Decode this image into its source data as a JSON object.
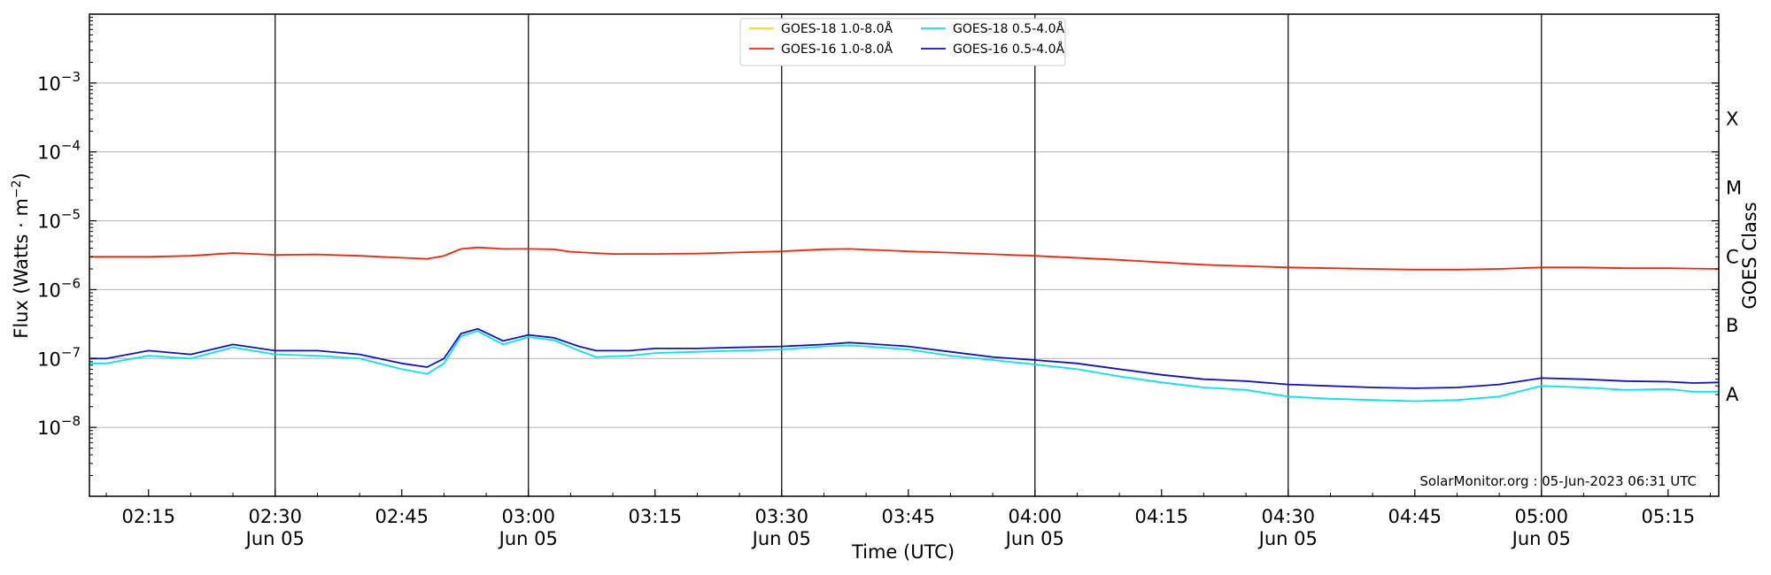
{
  "chart_data": {
    "type": "line",
    "ylabel_main": "Flux (Watts · m",
    "ylabel_sup": "−2",
    "ylabel_close": ")",
    "xlabel": "Time (UTC)",
    "right_axis_label": "GOES Class",
    "y_scale": "log",
    "y_range": [
      1e-09,
      0.01
    ],
    "y_ticks": [
      {
        "value": 1e-08,
        "base": "10",
        "exp": "−8"
      },
      {
        "value": 1e-07,
        "base": "10",
        "exp": "−7"
      },
      {
        "value": 1e-06,
        "base": "10",
        "exp": "−6"
      },
      {
        "value": 1e-05,
        "base": "10",
        "exp": "−5"
      },
      {
        "value": 0.0001,
        "base": "10",
        "exp": "−4"
      },
      {
        "value": 0.001,
        "base": "10",
        "exp": "−3"
      }
    ],
    "goes_classes": [
      {
        "label": "A",
        "value": 3e-08
      },
      {
        "label": "B",
        "value": 3e-07
      },
      {
        "label": "C",
        "value": 3e-06
      },
      {
        "label": "M",
        "value": 3e-05
      },
      {
        "label": "X",
        "value": 0.0003
      }
    ],
    "x_range": [
      "02:08",
      "05:21"
    ],
    "x_ticks": [
      {
        "time": "02:15",
        "date": ""
      },
      {
        "time": "02:30",
        "date": "Jun 05"
      },
      {
        "time": "02:45",
        "date": ""
      },
      {
        "time": "03:00",
        "date": "Jun 05"
      },
      {
        "time": "03:15",
        "date": ""
      },
      {
        "time": "03:30",
        "date": "Jun 05"
      },
      {
        "time": "03:45",
        "date": ""
      },
      {
        "time": "04:00",
        "date": "Jun 05"
      },
      {
        "time": "04:15",
        "date": ""
      },
      {
        "time": "04:30",
        "date": "Jun 05"
      },
      {
        "time": "04:45",
        "date": ""
      },
      {
        "time": "05:00",
        "date": "Jun 05"
      },
      {
        "time": "05:15",
        "date": ""
      }
    ],
    "vertical_lines": [
      "02:30",
      "03:00",
      "03:30",
      "04:00",
      "04:30",
      "05:00"
    ],
    "grid": "horizontal at decades",
    "legend_position": "top-center",
    "legend": [
      {
        "name": "GOES-18 1.0-8.0Å",
        "color": "#ffd700"
      },
      {
        "name": "GOES-16 1.0-8.0Å",
        "color": "#ff2000"
      },
      {
        "name": "GOES-18 0.5-4.0Å",
        "color": "#00e5ee"
      },
      {
        "name": "GOES-16 0.5-4.0Å",
        "color": "#1010d0"
      }
    ],
    "credit": "SolarMonitor.org : 05-Jun-2023 06:31 UTC",
    "series": [
      {
        "name": "GOES-16 1.0-8.0Å",
        "color": "#ff2000",
        "x": [
          "02:08",
          "02:15",
          "02:20",
          "02:25",
          "02:30",
          "02:35",
          "02:40",
          "02:45",
          "02:48",
          "02:50",
          "02:52",
          "02:54",
          "02:57",
          "03:00",
          "03:03",
          "03:05",
          "03:10",
          "03:15",
          "03:20",
          "03:30",
          "03:35",
          "03:38",
          "03:45",
          "03:50",
          "04:00",
          "04:10",
          "04:20",
          "04:30",
          "04:35",
          "04:40",
          "04:45",
          "04:50",
          "04:55",
          "05:00",
          "05:05",
          "05:10",
          "05:15",
          "05:21"
        ],
        "y": [
          3e-06,
          3e-06,
          3.1e-06,
          3.4e-06,
          3.2e-06,
          3.25e-06,
          3.1e-06,
          2.9e-06,
          2.8e-06,
          3.1e-06,
          3.9e-06,
          4.1e-06,
          3.9e-06,
          3.9e-06,
          3.85e-06,
          3.55e-06,
          3.3e-06,
          3.3e-06,
          3.35e-06,
          3.6e-06,
          3.85e-06,
          3.9e-06,
          3.6e-06,
          3.45e-06,
          3.1e-06,
          2.7e-06,
          2.3e-06,
          2.1e-06,
          2.05e-06,
          2e-06,
          1.95e-06,
          1.95e-06,
          2e-06,
          2.1e-06,
          2.1e-06,
          2.05e-06,
          2.05e-06,
          2e-06
        ]
      },
      {
        "name": "GOES-16 0.5-4.0Å",
        "color": "#1010d0",
        "x": [
          "02:08",
          "02:10",
          "02:15",
          "02:20",
          "02:25",
          "02:30",
          "02:35",
          "02:40",
          "02:45",
          "02:48",
          "02:50",
          "02:52",
          "02:54",
          "02:57",
          "03:00",
          "03:03",
          "03:06",
          "03:08",
          "03:12",
          "03:15",
          "03:20",
          "03:25",
          "03:30",
          "03:35",
          "03:38",
          "03:40",
          "03:45",
          "03:50",
          "03:55",
          "04:00",
          "04:05",
          "04:10",
          "04:15",
          "04:20",
          "04:25",
          "04:30",
          "04:35",
          "04:40",
          "04:45",
          "04:50",
          "04:55",
          "05:00",
          "05:05",
          "05:10",
          "05:15",
          "05:18",
          "05:21"
        ],
        "y": [
          1e-07,
          1e-07,
          1.3e-07,
          1.15e-07,
          1.6e-07,
          1.3e-07,
          1.3e-07,
          1.15e-07,
          8.5e-08,
          7.5e-08,
          1e-07,
          2.3e-07,
          2.7e-07,
          1.8e-07,
          2.2e-07,
          2e-07,
          1.5e-07,
          1.3e-07,
          1.3e-07,
          1.4e-07,
          1.4e-07,
          1.45e-07,
          1.5e-07,
          1.6e-07,
          1.7e-07,
          1.65e-07,
          1.5e-07,
          1.25e-07,
          1.05e-07,
          9.5e-08,
          8.5e-08,
          7e-08,
          5.8e-08,
          5e-08,
          4.7e-08,
          4.2e-08,
          4e-08,
          3.8e-08,
          3.7e-08,
          3.8e-08,
          4.2e-08,
          5.2e-08,
          5e-08,
          4.7e-08,
          4.6e-08,
          4.4e-08,
          4.5e-08
        ]
      },
      {
        "name": "GOES-18 0.5-4.0Å",
        "color": "#00e5ee",
        "x": [
          "02:08",
          "02:10",
          "02:15",
          "02:20",
          "02:25",
          "02:30",
          "02:35",
          "02:40",
          "02:45",
          "02:48",
          "02:50",
          "02:52",
          "02:54",
          "02:57",
          "03:00",
          "03:03",
          "03:06",
          "03:08",
          "03:12",
          "03:15",
          "03:20",
          "03:25",
          "03:30",
          "03:35",
          "03:38",
          "03:40",
          "03:45",
          "03:50",
          "03:55",
          "04:00",
          "04:05",
          "04:10",
          "04:15",
          "04:20",
          "04:25",
          "04:30",
          "04:35",
          "04:40",
          "04:45",
          "04:50",
          "04:55",
          "05:00",
          "05:05",
          "05:10",
          "05:15",
          "05:18",
          "05:21"
        ],
        "y": [
          8.5e-08,
          8.5e-08,
          1.1e-07,
          1e-07,
          1.45e-07,
          1.15e-07,
          1.1e-07,
          1e-07,
          7e-08,
          6e-08,
          8.5e-08,
          2.1e-07,
          2.5e-07,
          1.6e-07,
          2.05e-07,
          1.85e-07,
          1.3e-07,
          1.05e-07,
          1.1e-07,
          1.2e-07,
          1.25e-07,
          1.3e-07,
          1.35e-07,
          1.5e-07,
          1.55e-07,
          1.5e-07,
          1.35e-07,
          1.1e-07,
          9.5e-08,
          8.2e-08,
          7e-08,
          5.5e-08,
          4.5e-08,
          3.8e-08,
          3.5e-08,
          2.8e-08,
          2.6e-08,
          2.5e-08,
          2.4e-08,
          2.5e-08,
          2.8e-08,
          4e-08,
          3.8e-08,
          3.5e-08,
          3.6e-08,
          3.3e-08,
          3.3e-08
        ]
      }
    ]
  }
}
